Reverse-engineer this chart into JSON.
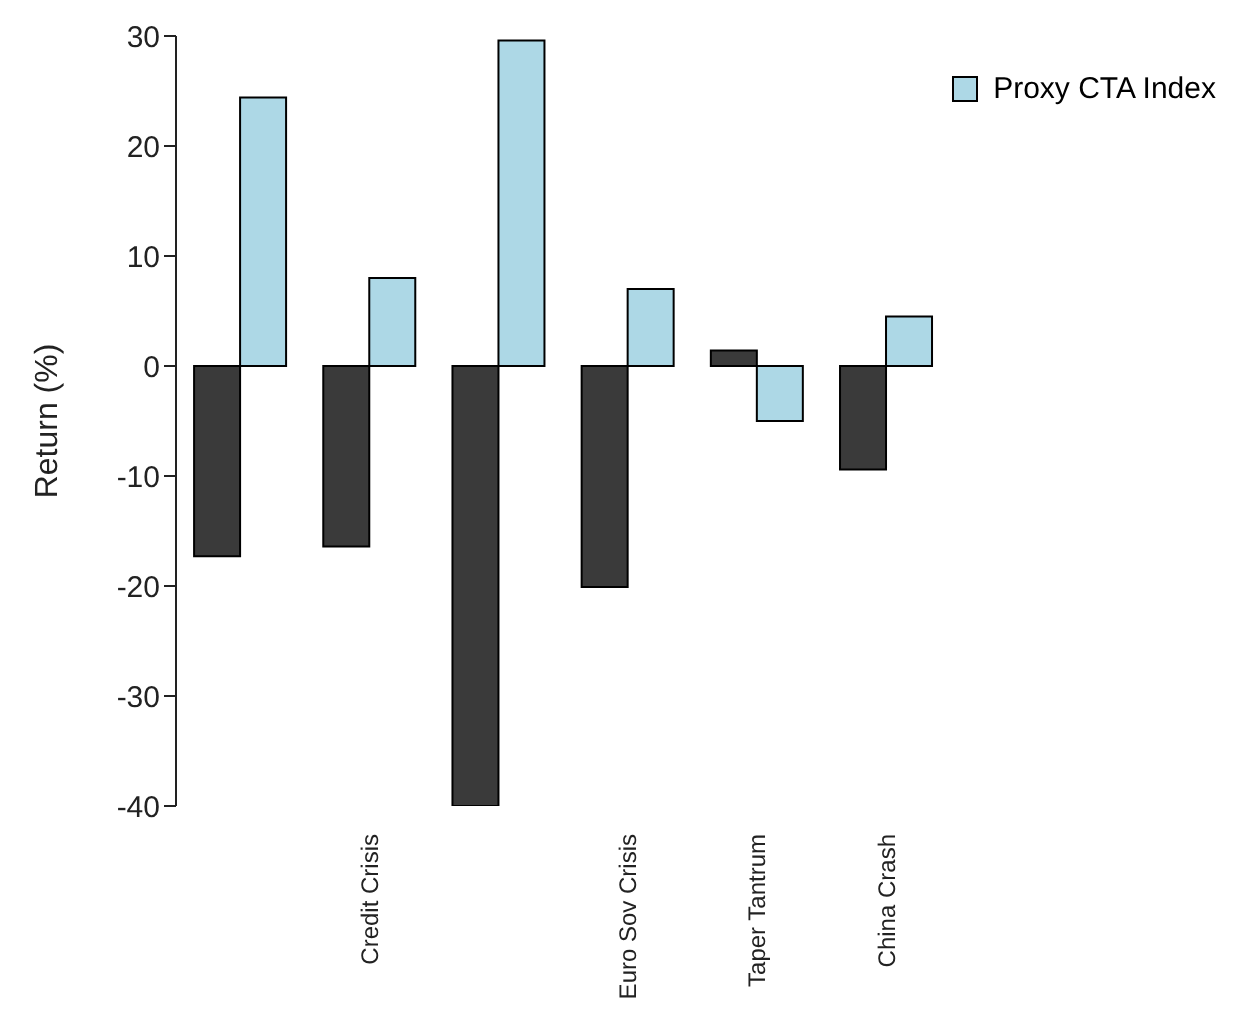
{
  "chart_data": {
    "type": "bar",
    "ylabel": "Return (%)",
    "categories": [
      null,
      "Credit Crisis",
      null,
      "Euro Sov Crisis",
      "Taper Tantrum",
      "China Crash"
    ],
    "series": [
      {
        "color": "#3a3a3a",
        "values": [
          -17.3,
          -16.4,
          -40,
          -20.1,
          1.4,
          -9.4
        ]
      },
      {
        "name": "Proxy CTA Index",
        "color": "#add8e6",
        "values": [
          24.4,
          8,
          29.6,
          7,
          -5,
          4.5
        ]
      }
    ],
    "ylim": [
      -40,
      30
    ],
    "yticks": [
      -40,
      -30,
      -20,
      -10,
      0,
      10,
      20,
      30
    ],
    "grid": false,
    "legend": "top right"
  }
}
